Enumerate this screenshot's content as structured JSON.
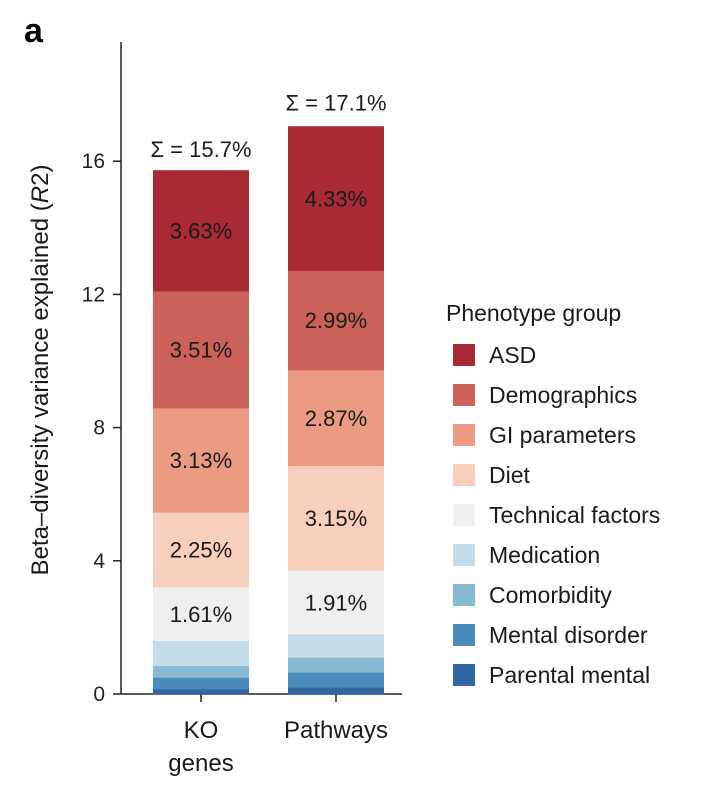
{
  "panel_letter": "a",
  "chart_data": {
    "type": "bar",
    "stacked": true,
    "categories": [
      [
        "KO",
        "genes"
      ],
      [
        "Pathways"
      ]
    ],
    "ylabel_parts": [
      "Beta–diversity variance explained (",
      "R",
      "2)"
    ],
    "ylim": [
      0,
      19
    ],
    "yticks": [
      0,
      4,
      8,
      12,
      16
    ],
    "totals": [
      "Σ = 15.7%",
      "Σ = 17.1%"
    ],
    "total_values": [
      15.7,
      17.1
    ],
    "legend_title": "Phenotype group",
    "legend_placement": "right",
    "grid": false,
    "series": [
      {
        "name": "Parental mental",
        "color": "#3266a3",
        "values": [
          0.15,
          0.2
        ],
        "labels": [
          "",
          ""
        ]
      },
      {
        "name": "Mental disorder",
        "color": "#4a8bbb",
        "values": [
          0.35,
          0.45
        ],
        "labels": [
          "",
          ""
        ]
      },
      {
        "name": "Comorbidity",
        "color": "#88bbd3",
        "values": [
          0.35,
          0.45
        ],
        "labels": [
          "",
          ""
        ]
      },
      {
        "name": "Medication",
        "color": "#c4dbe8",
        "values": [
          0.75,
          0.7
        ],
        "labels": [
          "",
          ""
        ]
      },
      {
        "name": "Technical factors",
        "color": "#efeff0",
        "values": [
          1.61,
          1.91
        ],
        "labels": [
          "1.61%",
          "1.91%"
        ]
      },
      {
        "name": "Diet",
        "color": "#f8cfbc",
        "values": [
          2.25,
          3.15
        ],
        "labels": [
          "2.25%",
          "3.15%"
        ]
      },
      {
        "name": "GI parameters",
        "color": "#ea9b82",
        "values": [
          3.13,
          2.87
        ],
        "labels": [
          "3.13%",
          "2.87%"
        ]
      },
      {
        "name": "Demographics",
        "color": "#cc6159",
        "values": [
          3.51,
          2.99
        ],
        "labels": [
          "3.51%",
          "2.99%"
        ]
      },
      {
        "name": "ASD",
        "color": "#a82a35",
        "values": [
          3.63,
          4.33
        ],
        "labels": [
          "3.63%",
          "4.33%"
        ]
      }
    ],
    "legend_order": [
      "ASD",
      "Demographics",
      "GI parameters",
      "Diet",
      "Technical factors",
      "Medication",
      "Comorbidity",
      "Mental disorder",
      "Parental mental"
    ]
  }
}
